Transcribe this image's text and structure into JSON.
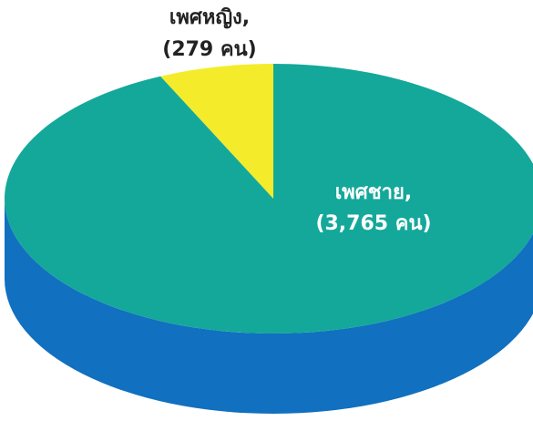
{
  "chart_data": {
    "type": "pie",
    "categories": [
      "เพศหญิง,",
      "เพศชาย,"
    ],
    "values": [
      279,
      3765
    ],
    "value_labels": [
      "(279 คน)",
      "(3,765 คน)"
    ],
    "colors": [
      "#f4ec2a",
      "#14a89b"
    ],
    "side_color": "#1170bf"
  }
}
